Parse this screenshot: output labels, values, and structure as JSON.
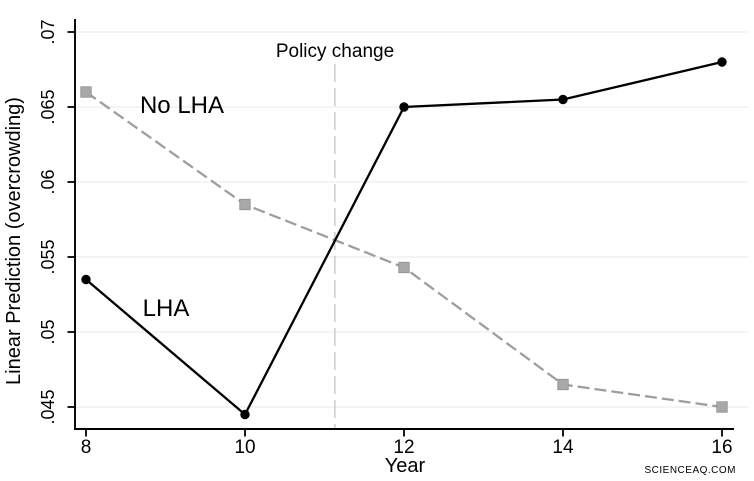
{
  "figure": {
    "watermark": "SCIENCEAQ.COM",
    "watermark_color": "#f2a0a0",
    "background": "#ffffff"
  },
  "chart_data": {
    "type": "line",
    "title": "",
    "xlabel": "Year",
    "ylabel": "Linear Prediction (overcrowding)",
    "x_tick_labels": [
      "8",
      "10",
      "12",
      "14",
      "16"
    ],
    "x_tick_values": [
      8,
      10,
      12,
      14,
      16
    ],
    "y_tick_labels": [
      ".045",
      ".05",
      ".055",
      ".06",
      ".065",
      ".07"
    ],
    "y_tick_values": [
      0.045,
      0.05,
      0.055,
      0.06,
      0.065,
      0.07
    ],
    "xlim": [
      7.86,
      16.33
    ],
    "ylim": [
      0.0436,
      0.0708
    ],
    "grid": "horizontal-only",
    "legend": "inline-labels",
    "series": [
      {
        "name": "No LHA",
        "x": [
          8,
          10,
          12,
          14,
          16
        ],
        "values": [
          0.066,
          0.0585,
          0.0543,
          0.0465,
          0.045
        ],
        "color": "#9e9e9e",
        "marker_fill": "#a8a8a8",
        "marker_edge": "#8f8f8f",
        "line_style": "dashed",
        "marker": "square"
      },
      {
        "name": "LHA",
        "x": [
          8,
          10,
          12,
          14,
          16
        ],
        "values": [
          0.0535,
          0.0445,
          0.065,
          0.0655,
          0.068
        ],
        "color": "#000000",
        "marker_fill": "#000000",
        "marker_edge": "#000000",
        "line_style": "solid",
        "marker": "circle"
      }
    ],
    "annotation": {
      "label": "Policy change",
      "x": 11.13,
      "line_style": "dashed",
      "color": "#a9a9a9",
      "line_color": "#cecece"
    },
    "axis_color": "#000000",
    "gridline_color": "#eaeaea"
  }
}
